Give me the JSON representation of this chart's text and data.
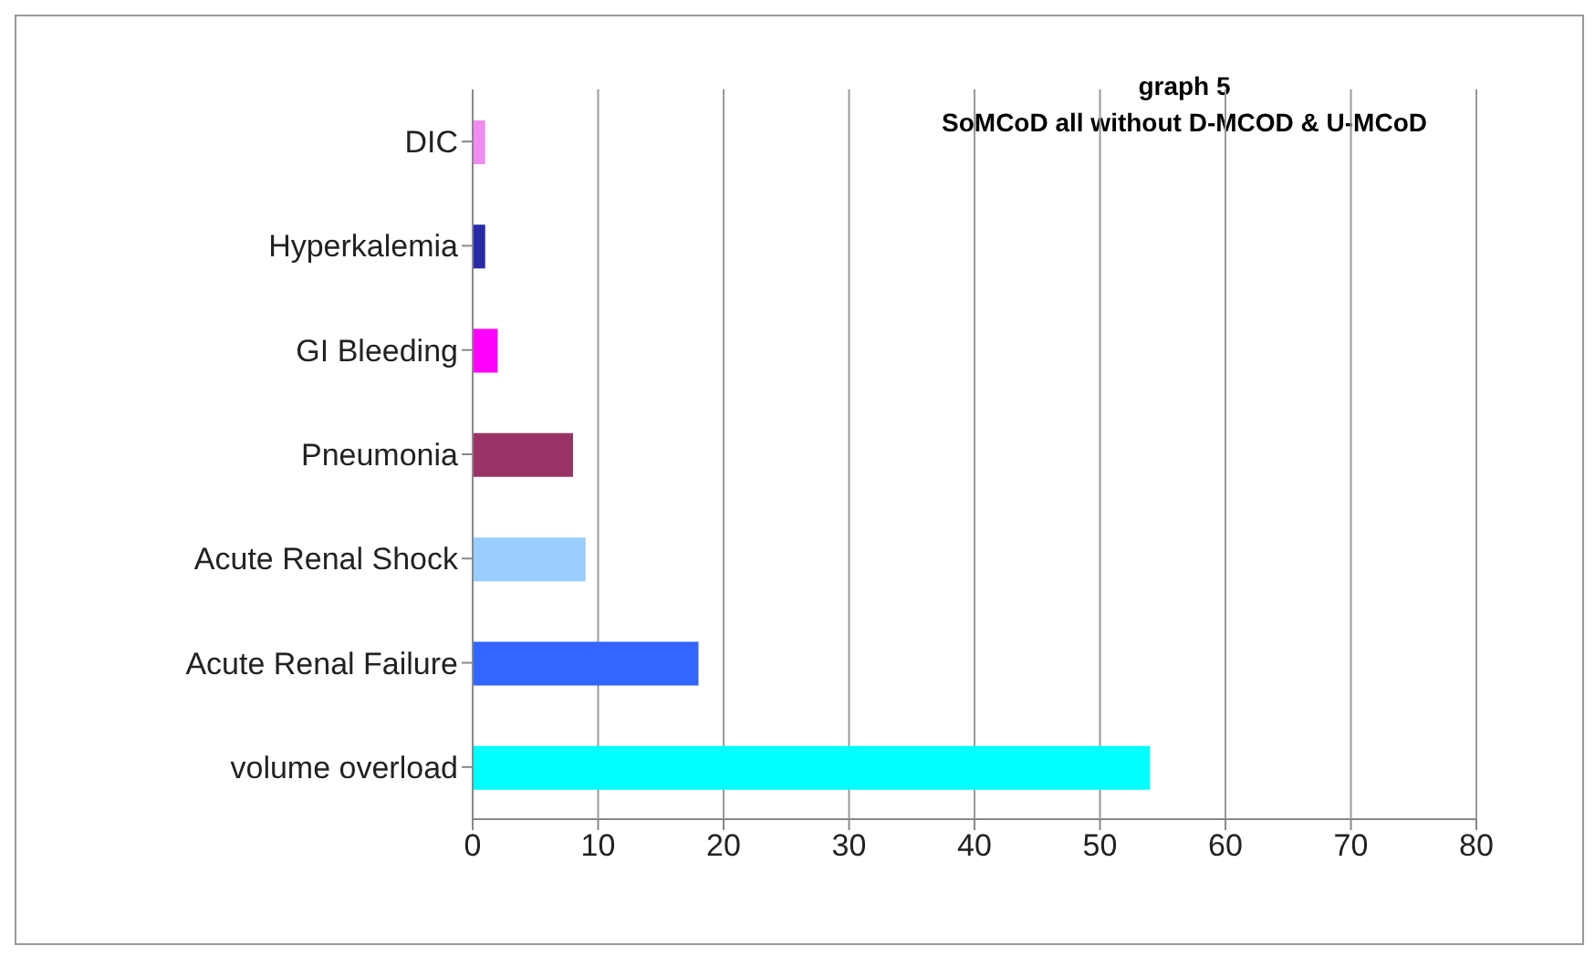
{
  "chart_data": {
    "type": "bar",
    "orientation": "horizontal",
    "title": "graph 5",
    "subtitle": "SoMCoD all without D-MCOD & U-MCoD",
    "categories": [
      "DIC",
      "Hyperkalemia",
      "GI Bleeding",
      "Pneumonia",
      "Acute Renal Shock",
      "Acute Renal Failure",
      "volume overload"
    ],
    "values": [
      1,
      1,
      2,
      8,
      9,
      18,
      54
    ],
    "colors": [
      "#f08cf0",
      "#2a2aa8",
      "#ff00ff",
      "#993366",
      "#99ccff",
      "#3366ff",
      "#00ffff"
    ],
    "xlim": [
      0,
      80
    ],
    "xticks": [
      0,
      10,
      20,
      30,
      40,
      50,
      60,
      70,
      80
    ],
    "grid": "x"
  }
}
